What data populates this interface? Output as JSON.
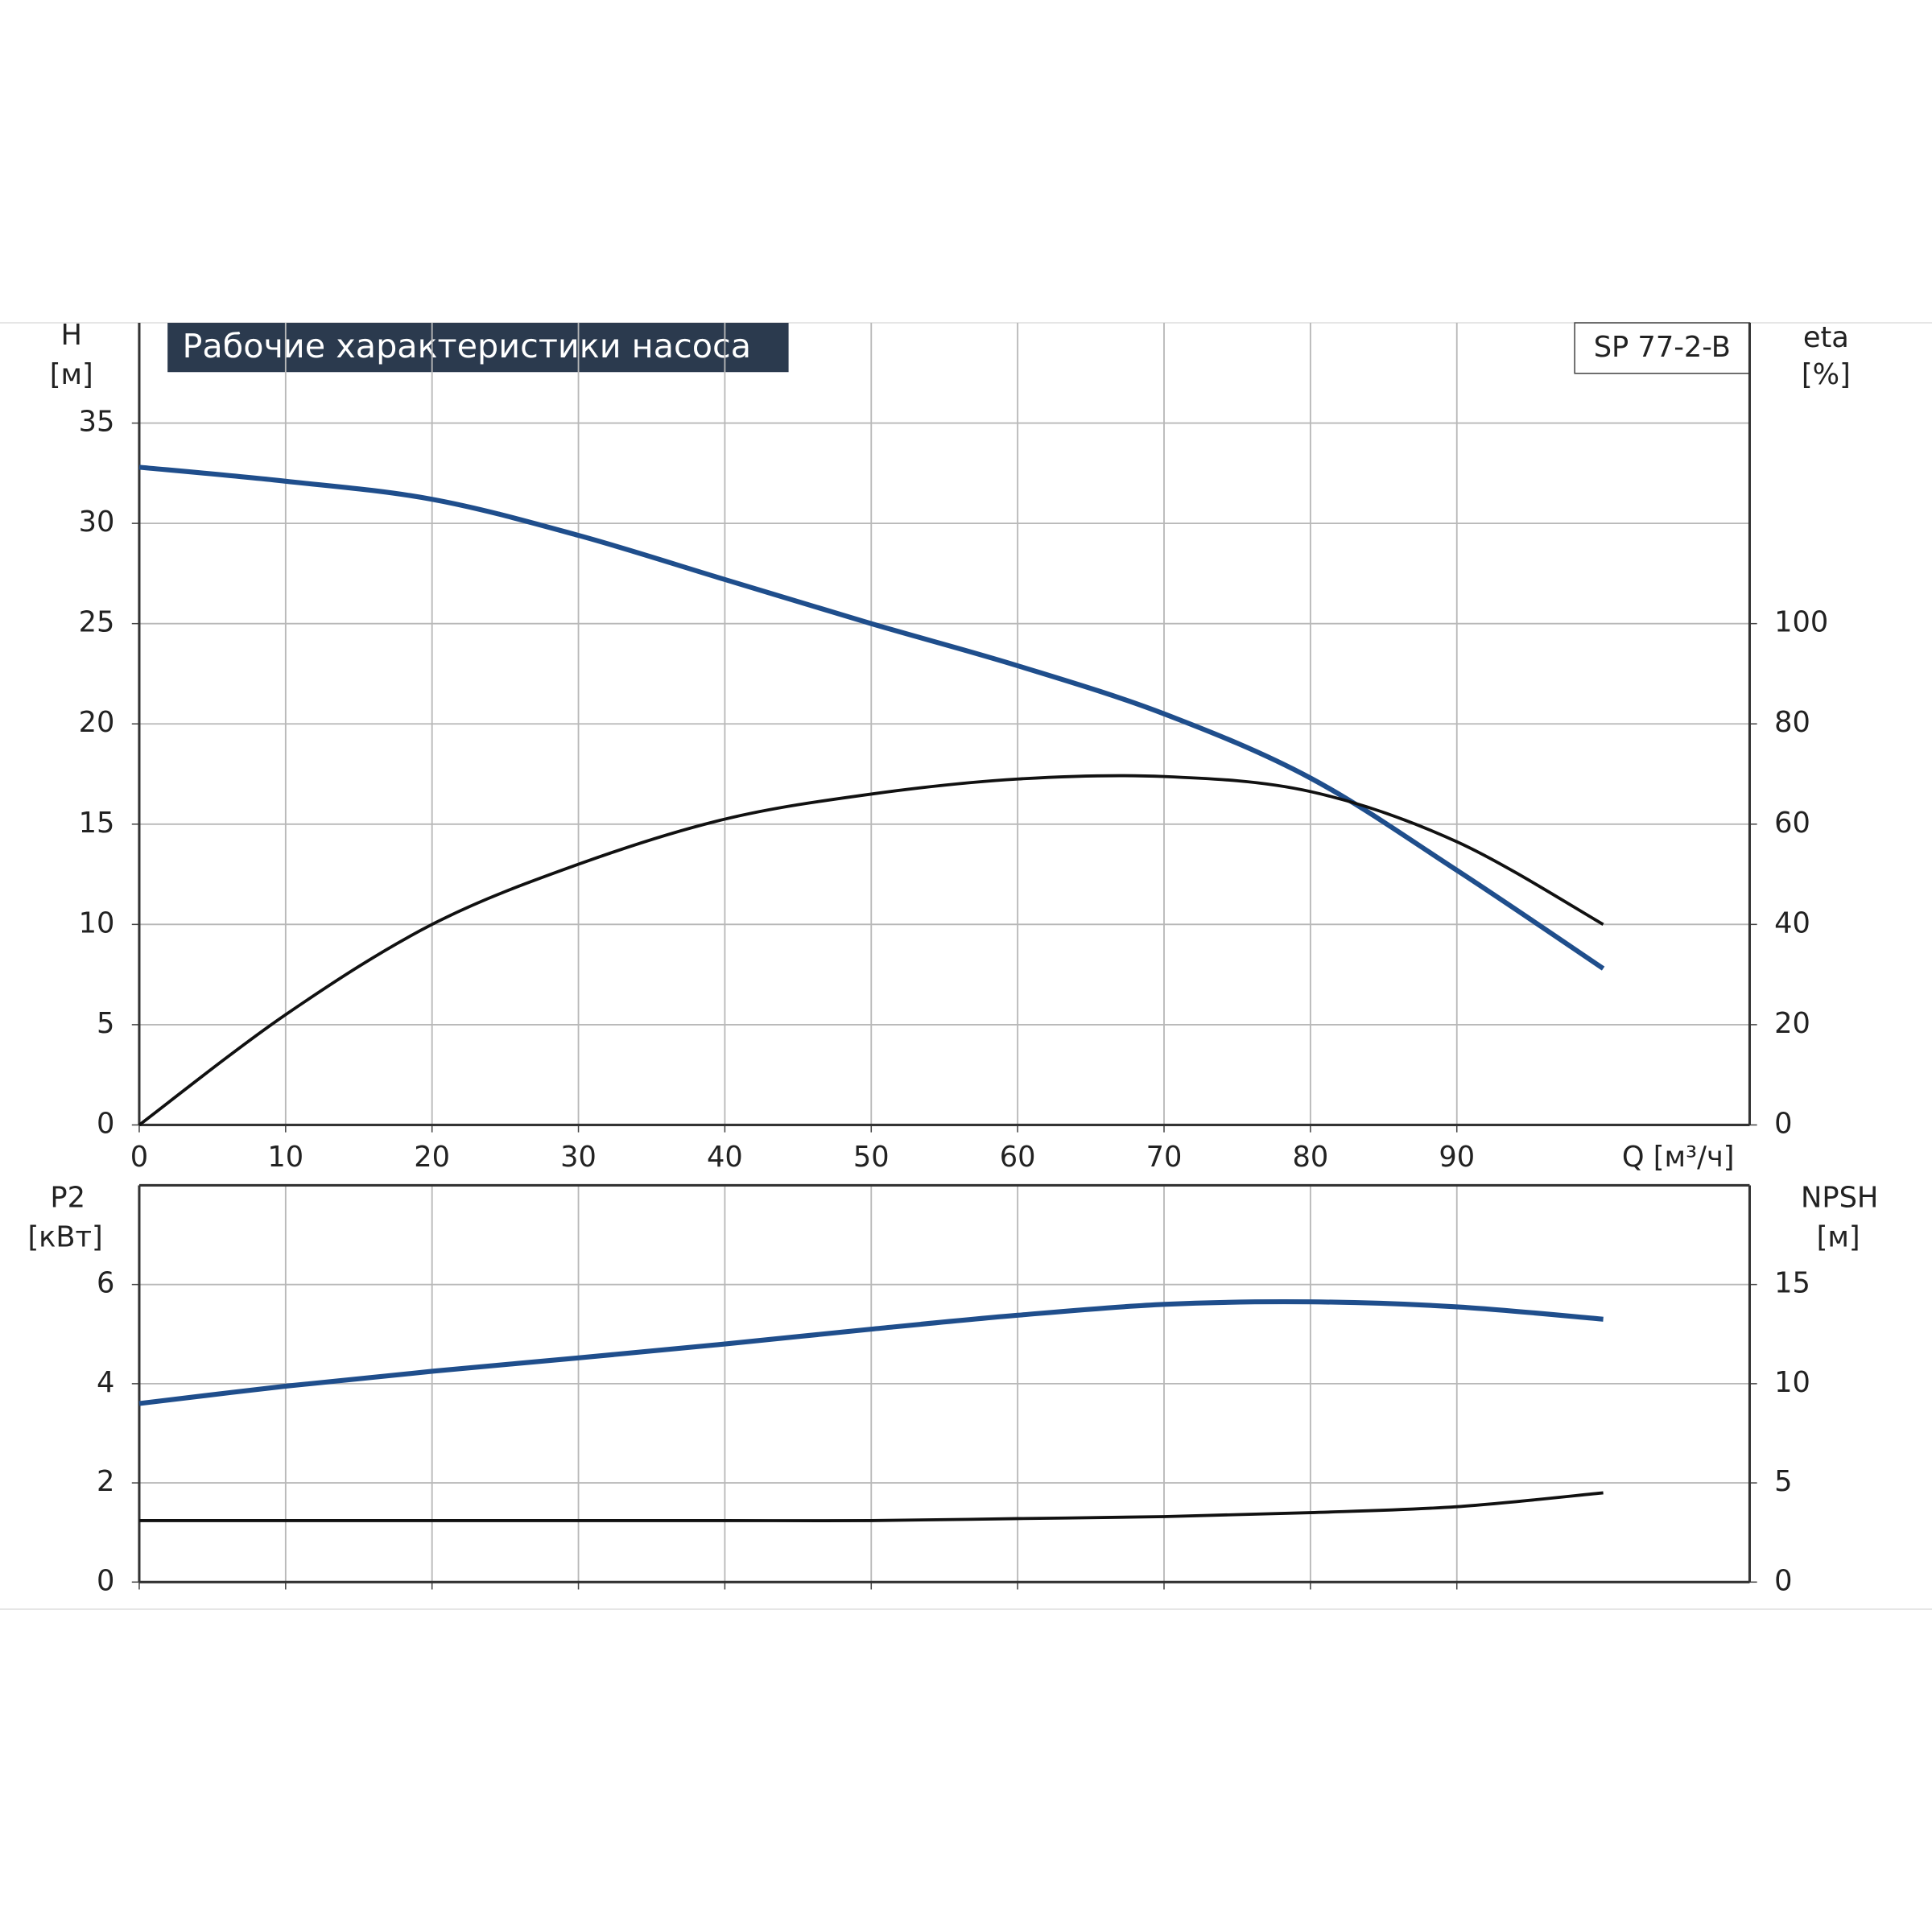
{
  "chart_data": [
    {
      "type": "line",
      "title": "Рабочие характеристики насоса",
      "annotation": "SP 77-2-B",
      "xlabel": "Q [м³/ч]",
      "ylabel": "H",
      "yunit": "[м]",
      "y2label": "eta",
      "y2unit": "[%]",
      "x": [
        0,
        10,
        20,
        30,
        40,
        50,
        60,
        70,
        80,
        90,
        100
      ],
      "series": [
        {
          "color": "#1f4e8c",
          "values": [
            32.8,
            32.1,
            31.2,
            29.4,
            27.2,
            25.0,
            22.9,
            20.5,
            17.3,
            12.7,
            7.8
          ]
        },
        {
          "color": "#111111",
          "axis": "y2",
          "values": [
            0,
            22,
            40,
            52,
            61,
            66,
            69,
            69.5,
            66.5,
            56.5,
            40
          ]
        }
      ],
      "xlim": [
        0,
        110
      ],
      "xticks": [
        0,
        10,
        20,
        30,
        40,
        50,
        60,
        70,
        80,
        90
      ],
      "ylim": [
        0,
        40
      ],
      "yticks": [
        0,
        5,
        10,
        15,
        20,
        25,
        30,
        35
      ],
      "y2lim": [
        0,
        160
      ],
      "y2ticks": [
        0,
        20,
        40,
        60,
        80,
        100
      ],
      "grid": true
    },
    {
      "type": "line",
      "ylabel": "P2",
      "yunit": "[кВт]",
      "y2label": "NPSH",
      "y2unit": "[м]",
      "x": [
        0,
        10,
        20,
        30,
        40,
        50,
        60,
        70,
        80,
        90,
        100
      ],
      "series": [
        {
          "color": "#1f4e8c",
          "values": [
            3.6,
            3.95,
            4.25,
            4.52,
            4.8,
            5.1,
            5.38,
            5.6,
            5.65,
            5.55,
            5.3
          ]
        },
        {
          "color": "#111111",
          "axis": "y2",
          "values": [
            3.1,
            3.1,
            3.1,
            3.1,
            3.1,
            3.1,
            3.2,
            3.3,
            3.5,
            3.8,
            4.5
          ]
        }
      ],
      "xlim": [
        0,
        110
      ],
      "ylim": [
        0,
        8
      ],
      "yticks": [
        0,
        2,
        4,
        6
      ],
      "y2lim": [
        0,
        20
      ],
      "y2ticks": [
        0,
        5,
        10,
        15
      ],
      "grid": true
    }
  ]
}
